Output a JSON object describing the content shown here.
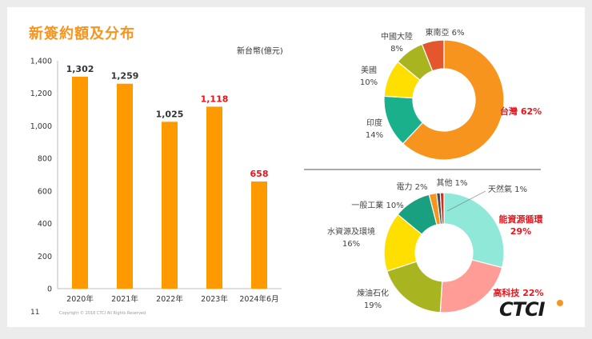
{
  "title": "新簽約額及分布",
  "page_number": "11",
  "copyright": "Copyright © 2016 CTCI All Rights Reserved",
  "logo_text": "CTCI",
  "colors": {
    "accent": "#f7941d",
    "bar": "#ff9900",
    "highlight": "#e8141b",
    "label": "#333333"
  },
  "chart_data": [
    {
      "type": "bar",
      "title": "新簽約額及分布",
      "unit_label": "新台幣(億元)",
      "categories": [
        "2020年",
        "2021年",
        "2022年",
        "2023年",
        "2024年6月"
      ],
      "values": [
        1302,
        1259,
        1025,
        1118,
        658
      ],
      "value_labels": [
        "1,302",
        "1,259",
        "1,025",
        "1,118",
        "658"
      ],
      "highlight": [
        false,
        false,
        false,
        true,
        true
      ],
      "ylim": [
        0,
        1400
      ],
      "yticks": [
        0,
        200,
        400,
        600,
        800,
        1000,
        1200,
        1400
      ],
      "ytick_labels": [
        "0",
        "200",
        "400",
        "600",
        "800",
        "1,000",
        "1,200",
        "1,400"
      ]
    },
    {
      "type": "pie",
      "subtype": "donut",
      "name": "region",
      "slices": [
        {
          "label": "台灣",
          "pct_label": "62%",
          "value": 62,
          "color": "#f7941d",
          "highlight": true
        },
        {
          "label": "印度",
          "pct_label": "14%",
          "value": 14,
          "color": "#19b08b",
          "highlight": false
        },
        {
          "label": "美國",
          "pct_label": "10%",
          "value": 10,
          "color": "#ffdf00",
          "highlight": false
        },
        {
          "label": "中國大陸",
          "pct_label": "8%",
          "value": 8,
          "color": "#a9b520",
          "highlight": false
        },
        {
          "label": "東南亞",
          "pct_label": "6%",
          "value": 6,
          "color": "#e4572e",
          "highlight": false
        }
      ]
    },
    {
      "type": "pie",
      "subtype": "donut",
      "name": "industry",
      "slices": [
        {
          "label": "能資源循環",
          "pct_label": "29%",
          "value": 29,
          "color": "#8fe8d8",
          "highlight": true
        },
        {
          "label": "高科技",
          "pct_label": "22%",
          "value": 22,
          "color": "#ff9c96",
          "highlight": true
        },
        {
          "label": "煉油石化",
          "pct_label": "19%",
          "value": 19,
          "color": "#a9b520",
          "highlight": false
        },
        {
          "label": "水資源及環境",
          "pct_label": "16%",
          "value": 16,
          "color": "#ffdf00",
          "highlight": false
        },
        {
          "label": "一般工業",
          "pct_label": "10%",
          "value": 10,
          "color": "#19a081",
          "highlight": false
        },
        {
          "label": "電力",
          "pct_label": "2%",
          "value": 2,
          "color": "#f7941d",
          "highlight": false
        },
        {
          "label": "其他",
          "pct_label": "1%",
          "value": 1,
          "color": "#4a4a4a",
          "highlight": false
        },
        {
          "label": "天然氣",
          "pct_label": "1%",
          "value": 1,
          "color": "#d62d1e",
          "highlight": false
        }
      ]
    }
  ]
}
